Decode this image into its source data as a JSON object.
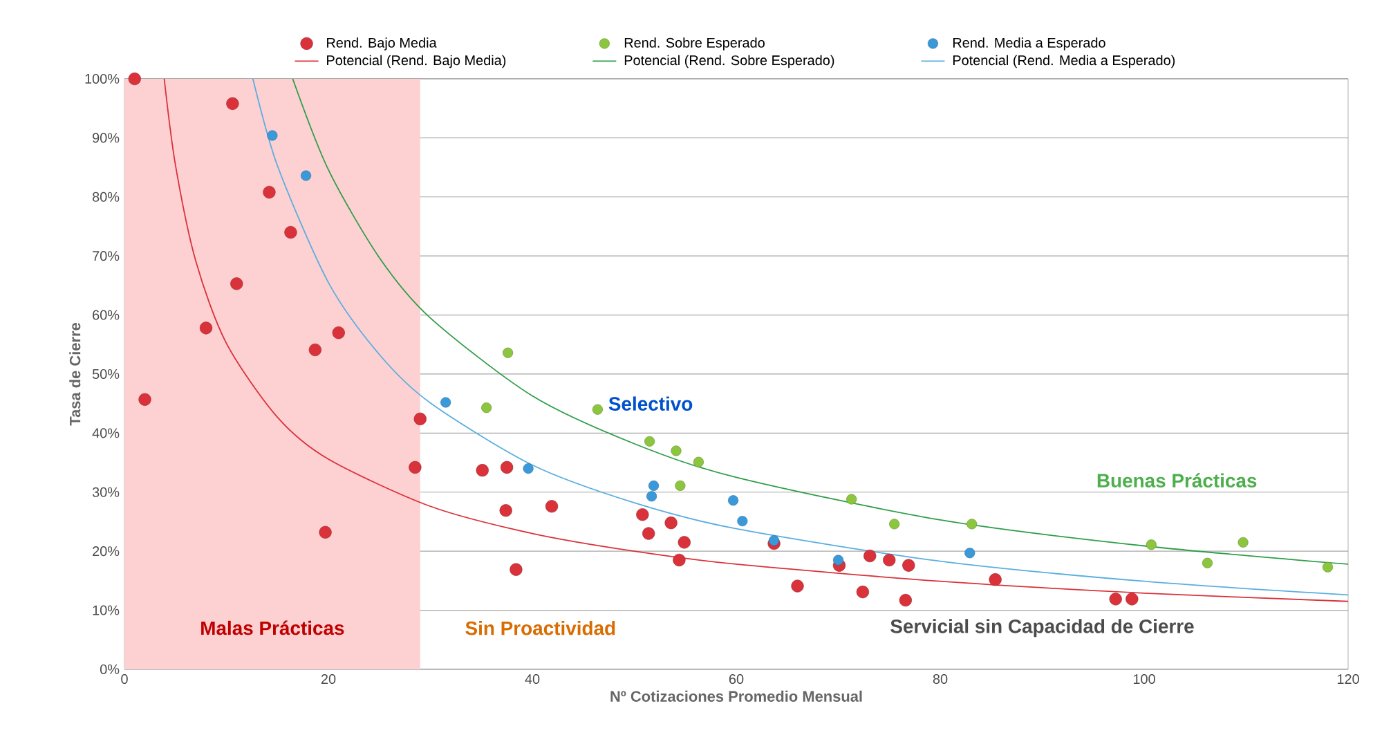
{
  "chart_data": {
    "type": "scatter",
    "xlabel": "Nº Cotizaciones  Promedio Mensual",
    "ylabel": "Tasa de Cierre",
    "xlim": [
      0,
      120
    ],
    "ylim": [
      0,
      100
    ],
    "xticks": [
      0,
      20,
      40,
      60,
      80,
      100,
      120
    ],
    "yticks": [
      {
        "value": 0,
        "label": "0%"
      },
      {
        "value": 10,
        "label": "10%"
      },
      {
        "value": 20,
        "label": "20%"
      },
      {
        "value": 30,
        "label": "30%"
      },
      {
        "value": 40,
        "label": "40%"
      },
      {
        "value": 50,
        "label": "50%"
      },
      {
        "value": 60,
        "label": "60%"
      },
      {
        "value": 70,
        "label": "70%"
      },
      {
        "value": 80,
        "label": "80%"
      },
      {
        "value": 90,
        "label": "90%"
      },
      {
        "value": 100,
        "label": "100%"
      }
    ],
    "grid": "y",
    "legend": "top",
    "series": [
      {
        "name": "Rend. Bajo Media",
        "marker": "circle",
        "color": "#d9323a",
        "x": [
          1.0,
          10.6,
          14.2,
          16.3,
          11,
          8,
          18.7,
          21,
          2.0,
          29,
          28.5,
          19.7,
          35.1,
          37.5,
          37.4,
          41.9,
          38.4,
          50.8,
          51.4,
          53.6,
          54.9,
          54.4,
          63.7,
          66.0,
          70.1,
          72.4,
          73.1,
          75.0,
          76.9,
          76.6,
          85.4,
          97.2,
          98.8
        ],
        "values": [
          100,
          95.8,
          80.8,
          74,
          65.3,
          57.8,
          54.1,
          57,
          45.7,
          42.4,
          34.2,
          23.2,
          33.7,
          34.2,
          26.9,
          27.6,
          16.9,
          26.2,
          23.0,
          24.8,
          21.5,
          18.5,
          21.3,
          14.1,
          17.6,
          13.1,
          19.2,
          18.5,
          17.6,
          11.7,
          15.2,
          11.9,
          11.9
        ]
      },
      {
        "name": "Rend. Sobre Esperado",
        "marker": "circle",
        "color": "#8cc63f",
        "x": [
          37.6,
          35.5,
          46.4,
          51.5,
          54.1,
          56.3,
          54.5,
          71.3,
          75.5,
          83.1,
          100.7,
          106.2,
          109.7,
          118.0
        ],
        "values": [
          53.6,
          44.3,
          44.0,
          38.6,
          37.0,
          35.1,
          31.1,
          28.8,
          24.6,
          24.6,
          21.1,
          18.0,
          21.5,
          17.3
        ]
      },
      {
        "name": "Rend. Media a Esperado",
        "marker": "circle",
        "color": "#3a9ad9",
        "x": [
          14.5,
          17.8,
          31.5,
          39.6,
          51.9,
          51.7,
          59.7,
          60.6,
          63.7,
          70.0,
          82.9
        ],
        "values": [
          90.4,
          83.6,
          45.2,
          34.0,
          31.1,
          29.3,
          28.6,
          25.1,
          21.8,
          18.5,
          19.7
        ]
      },
      {
        "name": "Potencial (Rend. Bajo Media)",
        "type": "line",
        "color": "#d9323a",
        "x": [
          3.9,
          5,
          7,
          10,
          15,
          20,
          30,
          40,
          50,
          60,
          80,
          100,
          120
        ],
        "values": [
          100,
          85.4,
          69.1,
          55.2,
          42.7,
          35.6,
          27.6,
          23.0,
          20.0,
          17.8,
          14.9,
          12.9,
          11.5
        ]
      },
      {
        "name": "Potencial (Rend. Sobre Esperado)",
        "type": "line",
        "color": "#2e9e48",
        "x": [
          16.5,
          20,
          25,
          30,
          40,
          50,
          60,
          80,
          100,
          120
        ],
        "values": [
          100,
          84.6,
          69.7,
          59.5,
          46.3,
          38.2,
          32.5,
          25.3,
          20.9,
          17.8
        ]
      },
      {
        "name": "Potencial (Rend. Media a Esperado)",
        "type": "line",
        "color": "#5aaee0",
        "x": [
          12.6,
          15,
          20,
          25,
          30,
          40,
          50,
          60,
          80,
          100,
          120
        ],
        "values": [
          100,
          85.3,
          65.5,
          53.3,
          45.1,
          34.6,
          28.2,
          23.8,
          18.3,
          14.9,
          12.6
        ]
      }
    ],
    "bands": [
      {
        "axis": "x",
        "from": 0,
        "to": 29,
        "label": "Malas Prácticas",
        "color": "#fdd0d2"
      }
    ],
    "annotations": [
      "Selectivo",
      "Buenas Prácticas",
      "Sin Proactividad",
      "Servicial sin Capacidad de Cierre"
    ]
  }
}
